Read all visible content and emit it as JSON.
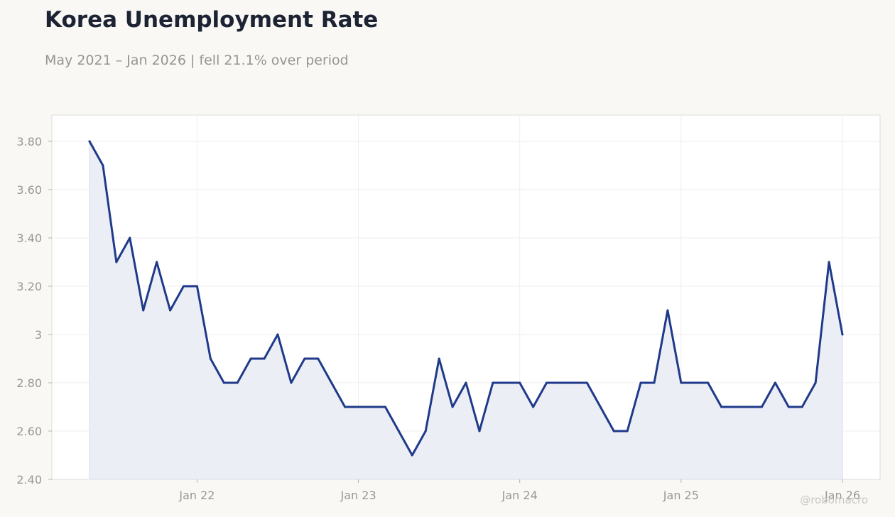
{
  "title": "Korea Unemployment Rate",
  "subtitle": "May 2021 – Jan 2026 | fell 21.1% over period",
  "watermark": "@robomacro",
  "colors": {
    "line": "#1f3a8a",
    "area_fill": "#eceef5",
    "background": "#f9f8f5",
    "plot_background": "#ffffff",
    "grid": "#eeeeee"
  },
  "chart_data": {
    "type": "line",
    "title": "Korea Unemployment Rate",
    "subtitle": "May 2021 – Jan 2026 | fell 21.1% over period",
    "xlabel": "",
    "ylabel": "",
    "x_start": "2021-05",
    "x_end": "2026-01",
    "x": [
      "2021-05",
      "2021-06",
      "2021-07",
      "2021-08",
      "2021-09",
      "2021-10",
      "2021-11",
      "2021-12",
      "2022-01",
      "2022-02",
      "2022-03",
      "2022-04",
      "2022-05",
      "2022-06",
      "2022-07",
      "2022-08",
      "2022-09",
      "2022-10",
      "2022-11",
      "2022-12",
      "2023-01",
      "2023-02",
      "2023-03",
      "2023-04",
      "2023-05",
      "2023-06",
      "2023-07",
      "2023-08",
      "2023-09",
      "2023-10",
      "2023-11",
      "2023-12",
      "2024-01",
      "2024-02",
      "2024-03",
      "2024-04",
      "2024-05",
      "2024-06",
      "2024-07",
      "2024-08",
      "2024-09",
      "2024-10",
      "2024-11",
      "2024-12",
      "2025-01",
      "2025-02",
      "2025-03",
      "2025-04",
      "2025-05",
      "2025-06",
      "2025-07",
      "2025-08",
      "2025-09",
      "2025-10",
      "2025-11",
      "2025-12",
      "2026-01"
    ],
    "series": [
      {
        "values": [
          3.8,
          3.7,
          3.3,
          3.4,
          3.1,
          3.3,
          3.1,
          3.2,
          3.2,
          2.9,
          2.8,
          2.8,
          2.9,
          2.9,
          3.0,
          2.8,
          2.9,
          2.9,
          2.8,
          2.7,
          2.7,
          2.7,
          2.7,
          2.6,
          2.5,
          2.6,
          2.9,
          2.7,
          2.8,
          2.6,
          2.8,
          2.8,
          2.8,
          2.7,
          2.8,
          2.8,
          2.8,
          2.8,
          2.7,
          2.6,
          2.6,
          2.8,
          2.8,
          3.1,
          2.8,
          2.8,
          2.8,
          2.7,
          2.7,
          2.7,
          2.7,
          2.8,
          2.7,
          2.7,
          2.8,
          3.3,
          3.0
        ]
      }
    ],
    "ylim": [
      2.4,
      3.9
    ],
    "y_ticks": [
      2.4,
      2.6,
      2.8,
      3.0,
      3.2,
      3.4,
      3.6,
      3.8
    ],
    "y_tick_labels": [
      "2.40",
      "2.60",
      "2.80",
      "3",
      "3.20",
      "3.40",
      "3.60",
      "3.80"
    ],
    "x_ticks": [
      "2022-01",
      "2023-01",
      "2024-01",
      "2025-01",
      "2026-01"
    ],
    "x_tick_labels": [
      "Jan 22",
      "Jan 23",
      "Jan 24",
      "Jan 25",
      "Jan 26"
    ],
    "grid": true,
    "area_fill": true,
    "legend": "none"
  }
}
